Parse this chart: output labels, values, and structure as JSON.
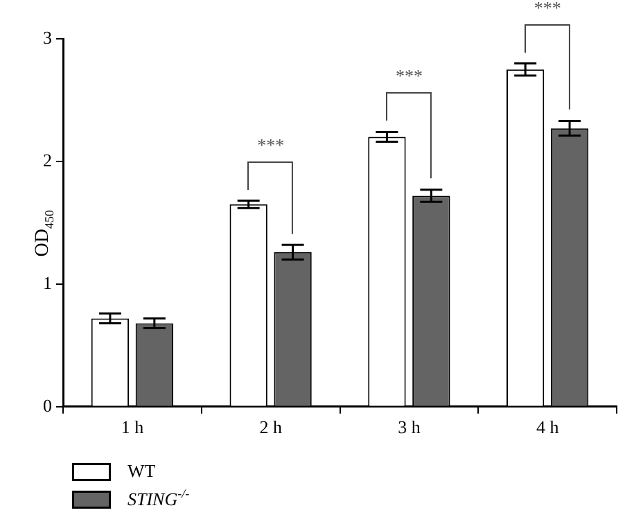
{
  "chart_data": {
    "type": "bar",
    "ylabel": "OD$_{450}$",
    "categories": [
      "1 h",
      "2 h",
      "3 h",
      "4 h"
    ],
    "series": [
      {
        "name": "WT",
        "color": "#ffffff",
        "values": [
          0.72,
          1.65,
          2.2,
          2.75
        ],
        "errors": [
          0.04,
          0.03,
          0.04,
          0.05
        ]
      },
      {
        "name": "STING$^{-/-}$",
        "color": "#646464",
        "values": [
          0.68,
          1.26,
          1.72,
          2.27
        ],
        "errors": [
          0.04,
          0.06,
          0.05,
          0.06
        ]
      }
    ],
    "ylim": [
      0,
      3
    ],
    "yticks": [
      0,
      1,
      2,
      3
    ],
    "legend": "bottom left",
    "annotations": [
      "***",
      "***",
      "***"
    ]
  }
}
